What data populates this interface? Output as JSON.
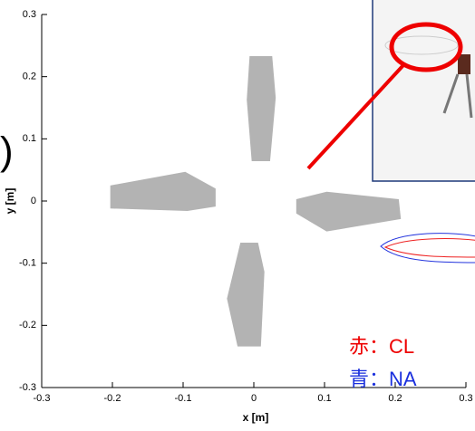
{
  "chart_data": {
    "type": "shape",
    "xlabel": "x [m]",
    "ylabel": "y [m]",
    "xlim": [
      -0.3,
      0.3
    ],
    "ylim": [
      -0.3,
      0.3
    ],
    "xticks": [
      -0.3,
      -0.2,
      -0.1,
      0,
      0.1,
      0.2,
      0.3
    ],
    "yticks": [
      -0.3,
      -0.2,
      -0.1,
      0,
      0.1,
      0.2,
      0.3
    ],
    "color": "#b3b3b3",
    "series": [
      {
        "x": [
          -0.006,
          0.026,
          0.031,
          0.023,
          -0.003,
          -0.01
        ],
        "y": [
          0.233,
          0.233,
          0.166,
          0.064,
          0.064,
          0.163
        ]
      },
      {
        "x": [
          -0.203,
          -0.097,
          -0.054,
          -0.054,
          -0.094,
          -0.203
        ],
        "y": [
          0.025,
          0.047,
          0.02,
          -0.009,
          -0.016,
          -0.012
        ]
      },
      {
        "x": [
          0.06,
          0.103,
          0.205,
          0.208,
          0.103,
          0.06
        ],
        "y": [
          0.003,
          0.015,
          0.003,
          -0.029,
          -0.049,
          -0.02
        ]
      },
      {
        "x": [
          -0.019,
          0.006,
          0.015,
          0.01,
          -0.023,
          -0.038
        ],
        "y": [
          -0.067,
          -0.067,
          -0.114,
          -0.234,
          -0.234,
          -0.157
        ]
      }
    ],
    "annotations": [
      ")",
      "赤：CL",
      "青：NA"
    ]
  }
}
